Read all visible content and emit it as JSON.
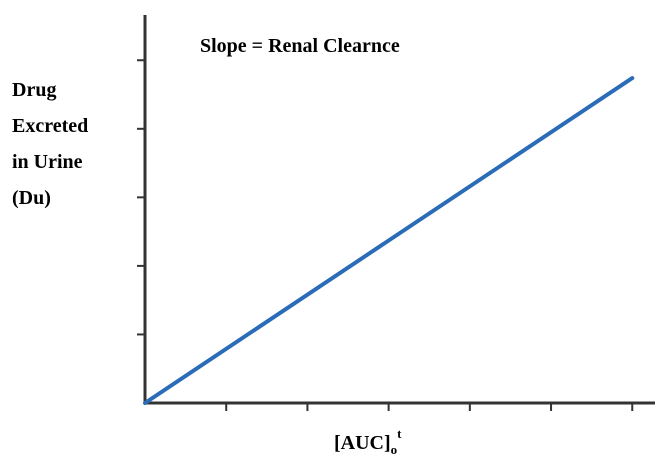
{
  "chart_data": {
    "type": "line",
    "title": "Slope = Renal Clearnce",
    "y_label": [
      "Drug",
      "Excreted",
      "in Urine",
      "(Du)"
    ],
    "x_label": {
      "text": "[AUC]",
      "sub": "o",
      "sup": "t"
    },
    "x": [
      0,
      6
    ],
    "series": [
      {
        "color": "#2b6cb8",
        "values": [
          0,
          4.74
        ]
      }
    ],
    "xlim": [
      0,
      6.28
    ],
    "ylim": [
      0,
      5.66
    ],
    "xticks": [
      1,
      2,
      3,
      4,
      5,
      6
    ],
    "yticks": [
      1,
      2,
      3,
      4,
      5
    ]
  }
}
